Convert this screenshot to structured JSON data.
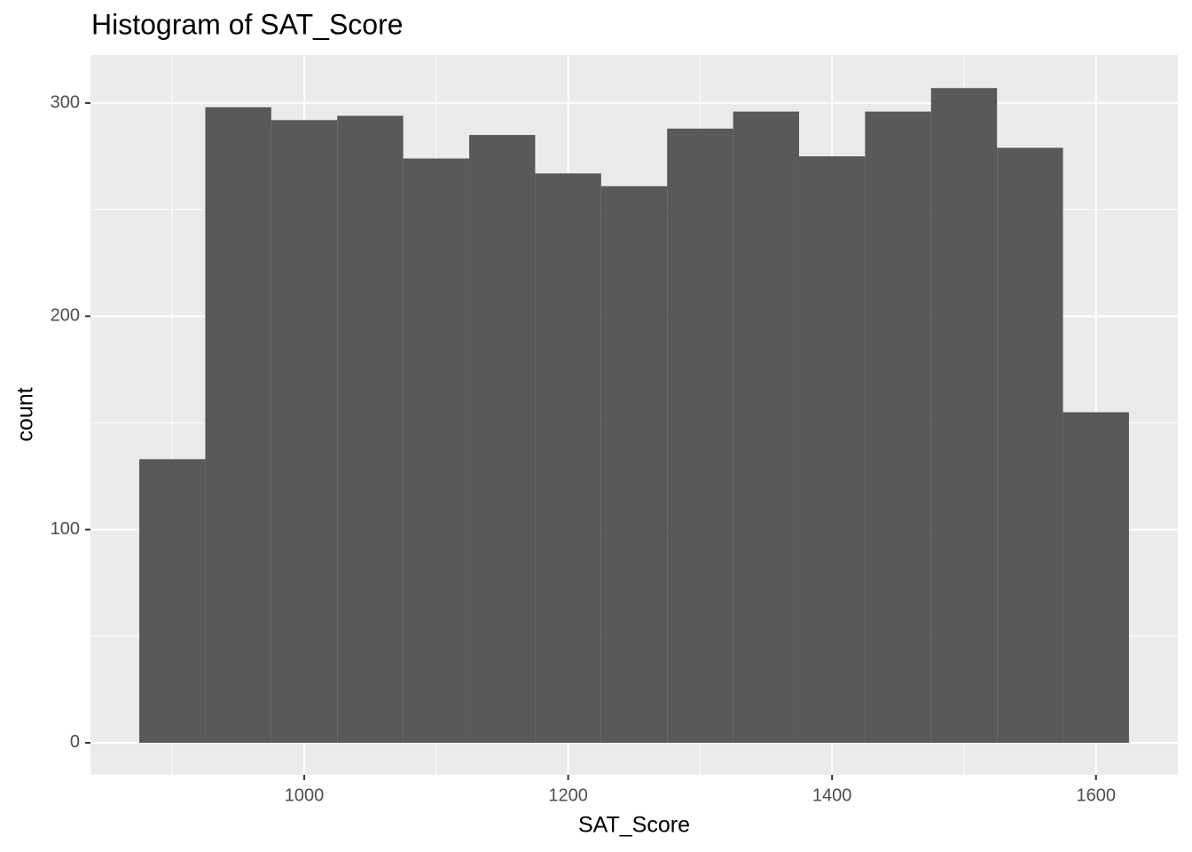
{
  "chart_data": {
    "type": "histogram",
    "title": "Histogram of SAT_Score",
    "x_label": "SAT_Score",
    "y_label": "count",
    "bins": [
      875,
      925,
      975,
      1025,
      1075,
      1125,
      1175,
      1225,
      1275,
      1325,
      1375,
      1425,
      1475,
      1525,
      1575,
      1625
    ],
    "values": [
      133,
      298,
      292,
      294,
      274,
      285,
      267,
      261,
      288,
      296,
      275,
      296,
      307,
      279,
      155
    ],
    "color": "#595959",
    "panel_color": "#ebebeb",
    "xlim": [
      838,
      1662
    ],
    "xticks": [
      1000,
      1200,
      1400,
      1600
    ],
    "x_minor_breaks": [
      900,
      1100,
      1300,
      1500
    ],
    "ylim": [
      -15,
      322.5
    ],
    "yticks": [
      0,
      100,
      200,
      300
    ],
    "y_minor_breaks": [
      50,
      150,
      250
    ],
    "grid": true
  }
}
